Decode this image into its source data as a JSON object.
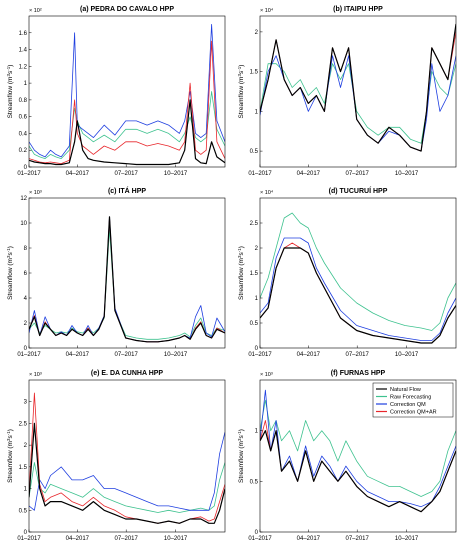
{
  "figure": {
    "ylabel": "Streamflow (m",
    "ylabel_sup": "3",
    "ylabel_tail": "s",
    "ylabel_sup2": "-1",
    "ylabel_end": ")",
    "legend": [
      {
        "name": "Natural Flow",
        "color": "#000000"
      },
      {
        "name": "Raw Forecasting",
        "color": "#3ec28f"
      },
      {
        "name": "Correction QM",
        "color": "#1f3fe0"
      },
      {
        "name": "Correction QM+AR",
        "color": "#e8262b"
      }
    ],
    "xticks": [
      "01–2017",
      "04–2017",
      "07–2017",
      "10–2017"
    ]
  },
  "chart_data": [
    {
      "type": "line",
      "title": "(a) PEDRA DO CAVALO HPP",
      "multiplier": "× 10²",
      "ylim": [
        0,
        180
      ],
      "yticks": [
        "0",
        "0.2",
        "0.4",
        "0.6",
        "0.8",
        "1",
        "1.2",
        "1.4",
        "1.6"
      ],
      "ytick_values": [
        0,
        20,
        40,
        60,
        80,
        100,
        120,
        140,
        160
      ],
      "x": [
        0,
        10,
        20,
        30,
        40,
        50,
        60,
        75,
        85,
        90,
        100,
        110,
        120,
        140,
        160,
        180,
        200,
        220,
        240,
        260,
        280,
        290,
        300,
        310,
        320,
        330,
        340,
        350,
        365
      ],
      "series": [
        {
          "name": "Natural Flow",
          "values": [
            8,
            6,
            5,
            4,
            4,
            3,
            3,
            5,
            30,
            55,
            20,
            10,
            8,
            6,
            5,
            4,
            3,
            3,
            3,
            3,
            5,
            20,
            80,
            10,
            5,
            4,
            30,
            12,
            5
          ]
        },
        {
          "name": "Raw Forecasting",
          "values": [
            25,
            15,
            12,
            10,
            15,
            12,
            10,
            20,
            70,
            55,
            40,
            35,
            30,
            38,
            30,
            45,
            45,
            40,
            45,
            40,
            30,
            40,
            60,
            35,
            30,
            35,
            90,
            45,
            25
          ]
        },
        {
          "name": "Correction QM",
          "values": [
            30,
            20,
            15,
            12,
            20,
            15,
            12,
            25,
            160,
            50,
            45,
            40,
            35,
            50,
            38,
            55,
            55,
            50,
            55,
            50,
            40,
            55,
            90,
            40,
            35,
            40,
            170,
            55,
            30
          ]
        },
        {
          "name": "Correction QM+AR",
          "values": [
            10,
            8,
            6,
            5,
            6,
            5,
            4,
            8,
            80,
            40,
            25,
            20,
            15,
            25,
            20,
            30,
            30,
            25,
            28,
            25,
            20,
            30,
            100,
            20,
            15,
            20,
            150,
            30,
            10
          ]
        }
      ]
    },
    {
      "type": "line",
      "title": "(b) ITAIPU HPP",
      "multiplier": "× 10⁴",
      "ylim": [
        0.3,
        2.2
      ],
      "yticks": [
        "0.5",
        "1",
        "1.5",
        "2"
      ],
      "ytick_values": [
        0.5,
        1,
        1.5,
        2
      ],
      "x": [
        0,
        15,
        30,
        45,
        60,
        75,
        90,
        105,
        120,
        135,
        150,
        165,
        180,
        200,
        220,
        240,
        260,
        280,
        300,
        310,
        320,
        335,
        350,
        365
      ],
      "series": [
        {
          "name": "Natural Flow",
          "values": [
            1.0,
            1.4,
            1.9,
            1.4,
            1.2,
            1.3,
            1.1,
            1.2,
            1.0,
            1.8,
            1.5,
            1.8,
            0.9,
            0.7,
            0.6,
            0.8,
            0.7,
            0.55,
            0.5,
            1.0,
            1.8,
            1.6,
            1.4,
            2.1
          ]
        },
        {
          "name": "Raw Forecasting",
          "values": [
            1.0,
            1.6,
            1.6,
            1.5,
            1.3,
            1.4,
            1.2,
            1.3,
            1.1,
            1.6,
            1.4,
            1.6,
            1.0,
            0.8,
            0.7,
            0.8,
            0.8,
            0.65,
            0.6,
            1.0,
            1.5,
            1.3,
            1.2,
            1.6
          ]
        },
        {
          "name": "Correction QM",
          "values": [
            0.95,
            1.5,
            1.7,
            1.4,
            1.2,
            1.3,
            1.0,
            1.2,
            1.0,
            1.7,
            1.3,
            1.7,
            0.9,
            0.7,
            0.6,
            0.75,
            0.7,
            0.55,
            0.5,
            0.9,
            1.6,
            1.0,
            1.2,
            1.7
          ]
        },
        {
          "name": "Correction QM+AR",
          "values": [
            1.0,
            1.4,
            1.9,
            1.4,
            1.2,
            1.3,
            1.1,
            1.2,
            1.0,
            1.8,
            1.5,
            1.8,
            0.9,
            0.7,
            0.6,
            0.8,
            0.7,
            0.55,
            0.5,
            1.0,
            1.8,
            1.6,
            1.4,
            2.0
          ]
        }
      ]
    },
    {
      "type": "line",
      "title": "(c) ITÁ HPP",
      "multiplier": "× 10³",
      "ylim": [
        0,
        12
      ],
      "yticks": [
        "0",
        "2",
        "4",
        "6",
        "8",
        "10",
        "12"
      ],
      "ytick_values": [
        0,
        2,
        4,
        6,
        8,
        10,
        12
      ],
      "x": [
        0,
        10,
        20,
        30,
        40,
        50,
        60,
        70,
        80,
        90,
        100,
        110,
        120,
        130,
        140,
        150,
        160,
        180,
        200,
        220,
        240,
        260,
        280,
        290,
        300,
        310,
        320,
        330,
        340,
        350,
        365
      ],
      "series": [
        {
          "name": "Natural Flow",
          "values": [
            1.5,
            2.5,
            1.0,
            2.0,
            1.5,
            1.0,
            1.2,
            1.0,
            1.5,
            1.2,
            1.0,
            1.5,
            1.0,
            1.5,
            2.5,
            10.5,
            3.0,
            0.8,
            0.6,
            0.5,
            0.5,
            0.6,
            0.8,
            1.0,
            0.7,
            1.5,
            2.0,
            1.0,
            0.8,
            1.5,
            1.2
          ]
        },
        {
          "name": "Raw Forecasting",
          "values": [
            1.5,
            2.0,
            1.2,
            1.8,
            1.5,
            1.2,
            1.3,
            1.2,
            1.6,
            1.3,
            1.2,
            1.6,
            1.2,
            1.6,
            2.4,
            9.5,
            3.0,
            1.0,
            0.8,
            0.7,
            0.7,
            0.8,
            1.0,
            1.2,
            0.9,
            1.8,
            2.4,
            1.2,
            1.0,
            1.6,
            1.4
          ]
        },
        {
          "name": "Correction QM",
          "values": [
            1.2,
            3.0,
            1.0,
            2.5,
            1.5,
            1.0,
            1.3,
            1.0,
            1.8,
            1.2,
            1.0,
            1.8,
            1.0,
            1.6,
            2.6,
            10.5,
            3.2,
            0.8,
            0.6,
            0.5,
            0.5,
            0.6,
            0.8,
            1.0,
            0.8,
            2.5,
            3.4,
            1.2,
            0.9,
            2.4,
            1.3
          ]
        },
        {
          "name": "Correction QM+AR",
          "values": [
            1.5,
            2.6,
            1.0,
            2.1,
            1.5,
            1.0,
            1.2,
            1.0,
            1.5,
            1.2,
            1.0,
            1.6,
            1.0,
            1.5,
            2.5,
            10.4,
            3.0,
            0.8,
            0.6,
            0.5,
            0.5,
            0.6,
            0.8,
            1.0,
            0.7,
            1.6,
            2.1,
            1.0,
            0.8,
            1.6,
            1.2
          ]
        }
      ]
    },
    {
      "type": "line",
      "title": "(d) TUCURUÍ HPP",
      "multiplier": "× 10⁴",
      "ylim": [
        0,
        3
      ],
      "yticks": [
        "0",
        "0.5",
        "1",
        "1.5",
        "2",
        "2.5"
      ],
      "ytick_values": [
        0,
        0.5,
        1,
        1.5,
        2,
        2.5
      ],
      "x": [
        0,
        15,
        30,
        45,
        60,
        75,
        90,
        105,
        120,
        150,
        180,
        210,
        240,
        270,
        300,
        320,
        335,
        350,
        365
      ],
      "series": [
        {
          "name": "Natural Flow",
          "values": [
            0.6,
            0.8,
            1.6,
            2.0,
            2.0,
            2.0,
            1.9,
            1.5,
            1.2,
            0.6,
            0.35,
            0.25,
            0.2,
            0.15,
            0.1,
            0.1,
            0.25,
            0.6,
            0.85
          ]
        },
        {
          "name": "Raw Forecasting",
          "values": [
            1.0,
            1.4,
            2.0,
            2.6,
            2.7,
            2.5,
            2.4,
            2.0,
            1.7,
            1.2,
            0.9,
            0.7,
            0.55,
            0.45,
            0.4,
            0.35,
            0.5,
            1.0,
            1.3
          ]
        },
        {
          "name": "Correction QM",
          "values": [
            0.7,
            0.9,
            1.8,
            2.2,
            2.2,
            2.2,
            2.1,
            1.6,
            1.3,
            0.75,
            0.45,
            0.35,
            0.25,
            0.2,
            0.15,
            0.15,
            0.3,
            0.7,
            1.0
          ]
        },
        {
          "name": "Correction QM+AR",
          "values": [
            0.6,
            0.8,
            1.6,
            2.0,
            2.1,
            2.0,
            1.9,
            1.5,
            1.2,
            0.6,
            0.35,
            0.25,
            0.2,
            0.15,
            0.1,
            0.1,
            0.25,
            0.6,
            0.85
          ]
        }
      ]
    },
    {
      "type": "line",
      "title": "(e) E. DA CUNHA HPP",
      "multiplier": "× 10³",
      "ylim": [
        0,
        3.5
      ],
      "yticks": [
        "0",
        "0.5",
        "1",
        "1.5",
        "2",
        "2.5",
        "3"
      ],
      "ytick_values": [
        0,
        0.5,
        1,
        1.5,
        2,
        2.5,
        3
      ],
      "x": [
        0,
        10,
        20,
        30,
        40,
        60,
        80,
        100,
        120,
        140,
        160,
        180,
        200,
        220,
        240,
        260,
        280,
        300,
        320,
        335,
        345,
        355,
        365
      ],
      "series": [
        {
          "name": "Natural Flow",
          "values": [
            0.8,
            2.5,
            1.0,
            0.6,
            0.7,
            0.7,
            0.6,
            0.5,
            0.7,
            0.5,
            0.4,
            0.3,
            0.3,
            0.25,
            0.2,
            0.25,
            0.2,
            0.3,
            0.3,
            0.2,
            0.2,
            0.5,
            1.0
          ]
        },
        {
          "name": "Raw Forecasting",
          "values": [
            0.8,
            1.6,
            1.0,
            0.9,
            1.1,
            1.0,
            0.9,
            0.8,
            1.0,
            0.8,
            0.7,
            0.6,
            0.55,
            0.5,
            0.45,
            0.5,
            0.45,
            0.5,
            0.55,
            0.5,
            0.6,
            1.2,
            1.6
          ]
        },
        {
          "name": "Correction QM",
          "values": [
            0.6,
            0.5,
            1.2,
            1.0,
            1.3,
            1.5,
            1.2,
            1.2,
            1.3,
            1.0,
            1.0,
            0.9,
            0.8,
            0.7,
            0.6,
            0.6,
            0.55,
            0.5,
            0.5,
            0.5,
            0.9,
            1.8,
            2.3
          ]
        },
        {
          "name": "Correction QM+AR",
          "values": [
            0.9,
            3.2,
            1.1,
            0.7,
            0.8,
            0.9,
            0.7,
            0.6,
            0.8,
            0.6,
            0.5,
            0.35,
            0.3,
            0.25,
            0.2,
            0.25,
            0.2,
            0.3,
            0.35,
            0.25,
            0.3,
            0.7,
            1.1
          ]
        }
      ]
    },
    {
      "type": "line",
      "title": "(f) FURNAS HPP",
      "multiplier": "× 10³",
      "ylim": [
        0,
        1.5
      ],
      "yticks": [
        "0",
        "0.5",
        "1"
      ],
      "ytick_values": [
        0,
        0.5,
        1
      ],
      "x": [
        0,
        10,
        20,
        30,
        40,
        55,
        70,
        85,
        100,
        115,
        130,
        145,
        160,
        180,
        200,
        220,
        240,
        260,
        280,
        300,
        320,
        335,
        350,
        365
      ],
      "series": [
        {
          "name": "Natural Flow",
          "values": [
            0.9,
            1.0,
            0.8,
            1.0,
            0.6,
            0.7,
            0.5,
            0.8,
            0.5,
            0.7,
            0.6,
            0.5,
            0.6,
            0.45,
            0.35,
            0.3,
            0.25,
            0.3,
            0.25,
            0.2,
            0.3,
            0.4,
            0.6,
            0.8
          ]
        },
        {
          "name": "Raw Forecasting",
          "values": [
            1.0,
            1.3,
            1.0,
            1.1,
            0.9,
            1.0,
            0.8,
            1.1,
            0.9,
            1.0,
            0.9,
            0.7,
            0.9,
            0.7,
            0.55,
            0.5,
            0.45,
            0.45,
            0.4,
            0.35,
            0.4,
            0.5,
            0.8,
            1.0
          ]
        },
        {
          "name": "Correction QM",
          "values": [
            0.9,
            1.4,
            0.8,
            1.1,
            0.6,
            0.75,
            0.5,
            0.85,
            0.55,
            0.75,
            0.65,
            0.5,
            0.65,
            0.5,
            0.4,
            0.35,
            0.3,
            0.3,
            0.28,
            0.25,
            0.3,
            0.45,
            0.65,
            0.85
          ]
        },
        {
          "name": "Correction QM+AR",
          "values": [
            0.9,
            1.1,
            0.8,
            1.0,
            0.6,
            0.7,
            0.5,
            0.8,
            0.5,
            0.7,
            0.6,
            0.5,
            0.6,
            0.45,
            0.35,
            0.3,
            0.25,
            0.3,
            0.25,
            0.2,
            0.3,
            0.4,
            0.6,
            0.8
          ]
        }
      ]
    }
  ]
}
